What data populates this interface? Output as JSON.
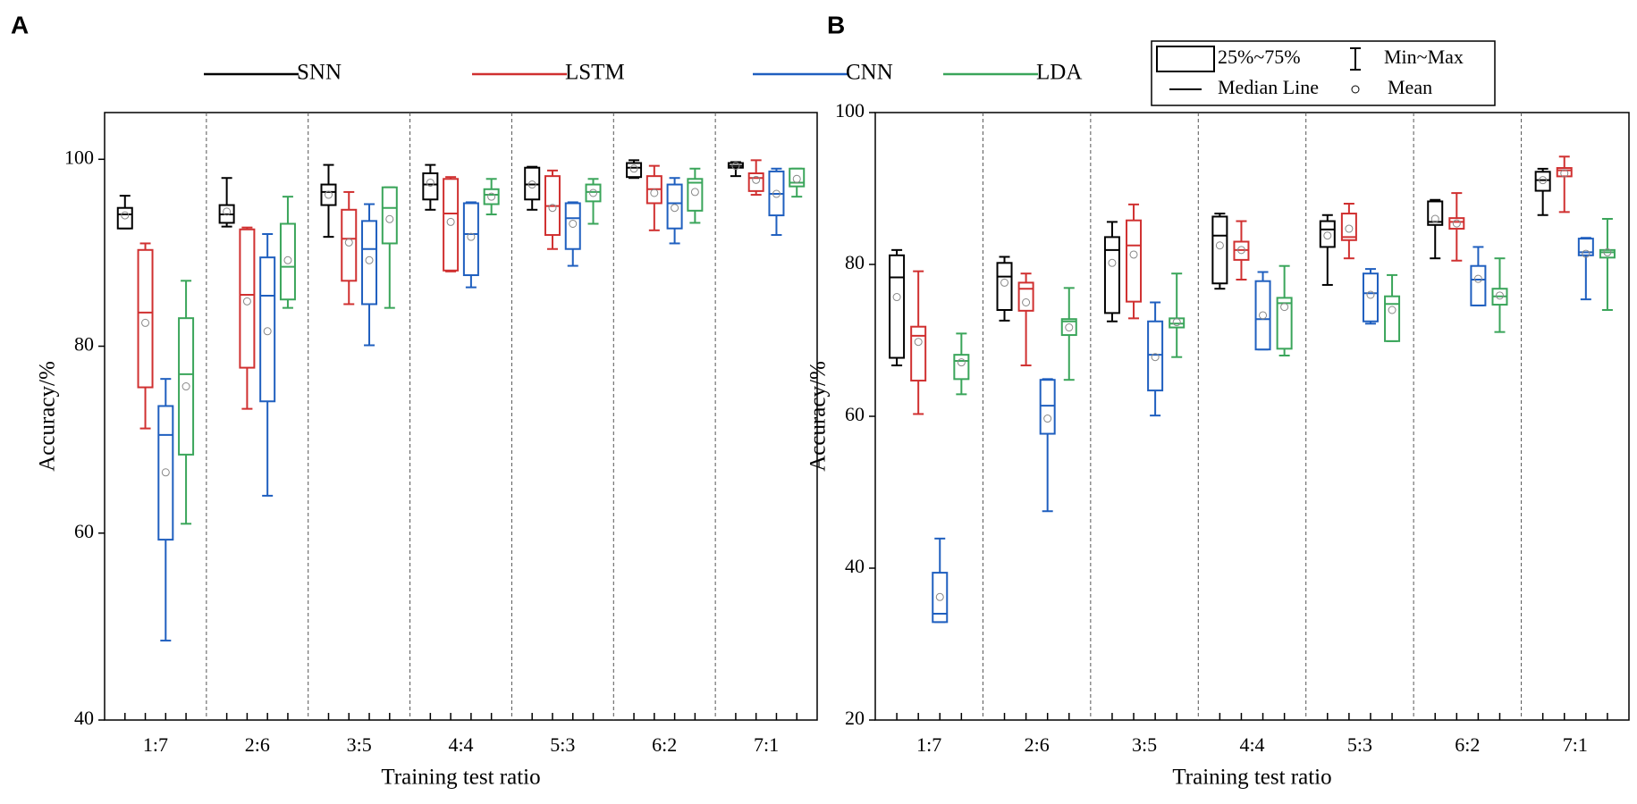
{
  "chart_data": [
    {
      "type": "box",
      "label": "A",
      "ylabel": "Accuracy/%",
      "xlabel": "Training test ratio",
      "categories": [
        "1:7",
        "2:6",
        "3:5",
        "4:4",
        "5:3",
        "6:2",
        "7:1"
      ],
      "ylim": [
        40,
        105
      ],
      "yticks": [
        40,
        60,
        80,
        100
      ],
      "series": [
        {
          "name": "SNN",
          "color": "#000000",
          "min": [
            92.6,
            92.8,
            91.7,
            94.6,
            94.6,
            98.0,
            98.2
          ],
          "q1": [
            92.6,
            93.2,
            95.1,
            95.7,
            95.7,
            98.1,
            99.1
          ],
          "median": [
            94.1,
            94.1,
            96.5,
            97.3,
            97.3,
            99.1,
            99.3
          ],
          "q3": [
            94.8,
            95.1,
            97.3,
            98.5,
            99.1,
            99.6,
            99.6
          ],
          "max": [
            96.1,
            98.0,
            99.4,
            99.4,
            99.2,
            99.9,
            99.7
          ],
          "mean": [
            94.0,
            94.4,
            96.2,
            97.5,
            97.3,
            99.0,
            99.3
          ]
        },
        {
          "name": "LSTM",
          "color": "#d03030",
          "min": [
            71.2,
            73.3,
            84.5,
            88.0,
            90.4,
            92.4,
            96.2
          ],
          "q1": [
            75.6,
            77.7,
            87.0,
            88.1,
            91.9,
            95.3,
            96.6
          ],
          "median": [
            83.6,
            85.5,
            91.5,
            94.2,
            95.0,
            96.8,
            98.0
          ],
          "q3": [
            90.3,
            92.5,
            94.6,
            97.9,
            98.2,
            98.2,
            98.5
          ],
          "max": [
            91.0,
            92.7,
            96.5,
            98.1,
            98.8,
            99.3,
            99.9
          ],
          "mean": [
            82.5,
            84.8,
            91.1,
            93.3,
            94.8,
            96.4,
            97.8
          ]
        },
        {
          "name": "CNN",
          "color": "#1f5fbf",
          "min": [
            48.5,
            64.0,
            80.1,
            86.3,
            88.6,
            91.0,
            91.9
          ],
          "q1": [
            59.3,
            74.1,
            84.5,
            87.6,
            90.4,
            92.6,
            94.0
          ],
          "median": [
            70.5,
            85.4,
            90.4,
            92.0,
            93.7,
            95.3,
            96.3
          ],
          "q3": [
            73.6,
            89.5,
            93.4,
            95.3,
            95.3,
            97.3,
            98.7
          ],
          "max": [
            76.5,
            92.0,
            95.2,
            95.4,
            95.4,
            98.0,
            99.0
          ],
          "mean": [
            66.5,
            81.6,
            89.2,
            91.7,
            93.1,
            94.8,
            96.3
          ]
        },
        {
          "name": "LDA",
          "color": "#3aa55a",
          "min": [
            61.0,
            84.1,
            84.1,
            94.1,
            93.1,
            93.2,
            96.0
          ],
          "q1": [
            68.4,
            85.0,
            91.0,
            95.2,
            95.5,
            94.5,
            97.1
          ],
          "median": [
            77.0,
            88.5,
            94.8,
            96.2,
            96.5,
            97.5,
            97.5
          ],
          "q3": [
            83.0,
            93.1,
            97.0,
            96.8,
            97.3,
            97.9,
            99.0
          ],
          "max": [
            87.0,
            96.0,
            97.0,
            97.9,
            97.9,
            99.0,
            99.0
          ],
          "mean": [
            75.7,
            89.2,
            93.6,
            96.0,
            96.4,
            96.5,
            97.9
          ]
        }
      ]
    },
    {
      "type": "box",
      "label": "B",
      "ylabel": "Accuracy/%",
      "xlabel": "Training test ratio",
      "categories": [
        "1:7",
        "2:6",
        "3:5",
        "4:4",
        "5:3",
        "6:2",
        "7:1"
      ],
      "ylim": [
        20,
        100
      ],
      "yticks": [
        20,
        40,
        60,
        80,
        100
      ],
      "box_legend": [
        "25%~75%",
        "Min~Max",
        "Median Line",
        "Mean"
      ],
      "series": [
        {
          "color": "#000000",
          "min": [
            66.7,
            72.6,
            72.5,
            76.8,
            77.3,
            80.8,
            86.5
          ],
          "q1": [
            67.7,
            74.0,
            73.6,
            77.5,
            82.3,
            85.2,
            89.7
          ],
          "median": [
            78.3,
            78.4,
            81.9,
            83.8,
            84.6,
            85.6,
            91.1
          ],
          "q3": [
            81.2,
            80.2,
            83.6,
            86.3,
            85.7,
            88.3,
            92.2
          ],
          "max": [
            81.9,
            81.0,
            85.6,
            86.7,
            86.5,
            88.5,
            92.6
          ],
          "mean": [
            75.7,
            77.6,
            80.2,
            82.5,
            83.8,
            86.0,
            91.1
          ]
        },
        {
          "color": "#d03030",
          "min": [
            60.3,
            66.7,
            72.9,
            78.0,
            80.8,
            80.5,
            86.9
          ],
          "q1": [
            64.7,
            73.9,
            75.1,
            80.6,
            83.2,
            84.7,
            91.6
          ],
          "median": [
            70.6,
            76.8,
            82.5,
            81.9,
            83.6,
            85.6,
            92.4
          ],
          "q3": [
            71.8,
            77.6,
            85.8,
            83.0,
            86.7,
            86.1,
            92.7
          ],
          "max": [
            79.1,
            78.8,
            87.9,
            85.7,
            88.0,
            89.4,
            94.2
          ],
          "mean": [
            69.8,
            75.0,
            81.3,
            81.9,
            84.7,
            85.4,
            92.0
          ]
        },
        {
          "color": "#1f5fbf",
          "min": [
            32.9,
            47.5,
            60.1,
            68.8,
            72.2,
            74.6,
            75.4
          ],
          "q1": [
            32.9,
            57.7,
            63.4,
            68.8,
            72.5,
            74.6,
            81.2
          ],
          "median": [
            34.0,
            61.4,
            68.1,
            72.8,
            76.2,
            78.0,
            81.6
          ],
          "q3": [
            39.4,
            64.8,
            72.5,
            77.8,
            78.8,
            79.8,
            83.4
          ],
          "max": [
            43.9,
            64.9,
            75.0,
            79.0,
            79.4,
            82.3,
            83.5
          ],
          "mean": [
            36.2,
            59.7,
            67.8,
            73.3,
            76.0,
            78.1,
            81.4
          ]
        },
        {
          "color": "#3aa55a",
          "min": [
            62.9,
            64.8,
            67.8,
            68.0,
            69.9,
            71.1,
            74.0
          ],
          "q1": [
            64.9,
            70.7,
            71.7,
            68.9,
            69.9,
            74.7,
            80.9
          ],
          "median": [
            67.3,
            72.5,
            72.2,
            74.9,
            74.8,
            75.8,
            81.6
          ],
          "q3": [
            68.1,
            72.8,
            72.9,
            75.6,
            75.8,
            76.8,
            81.9
          ],
          "max": [
            70.9,
            76.9,
            78.8,
            79.8,
            78.6,
            80.8,
            86.0
          ],
          "mean": [
            67.1,
            71.7,
            72.4,
            74.4,
            74.0,
            75.9,
            81.6
          ]
        }
      ]
    }
  ]
}
